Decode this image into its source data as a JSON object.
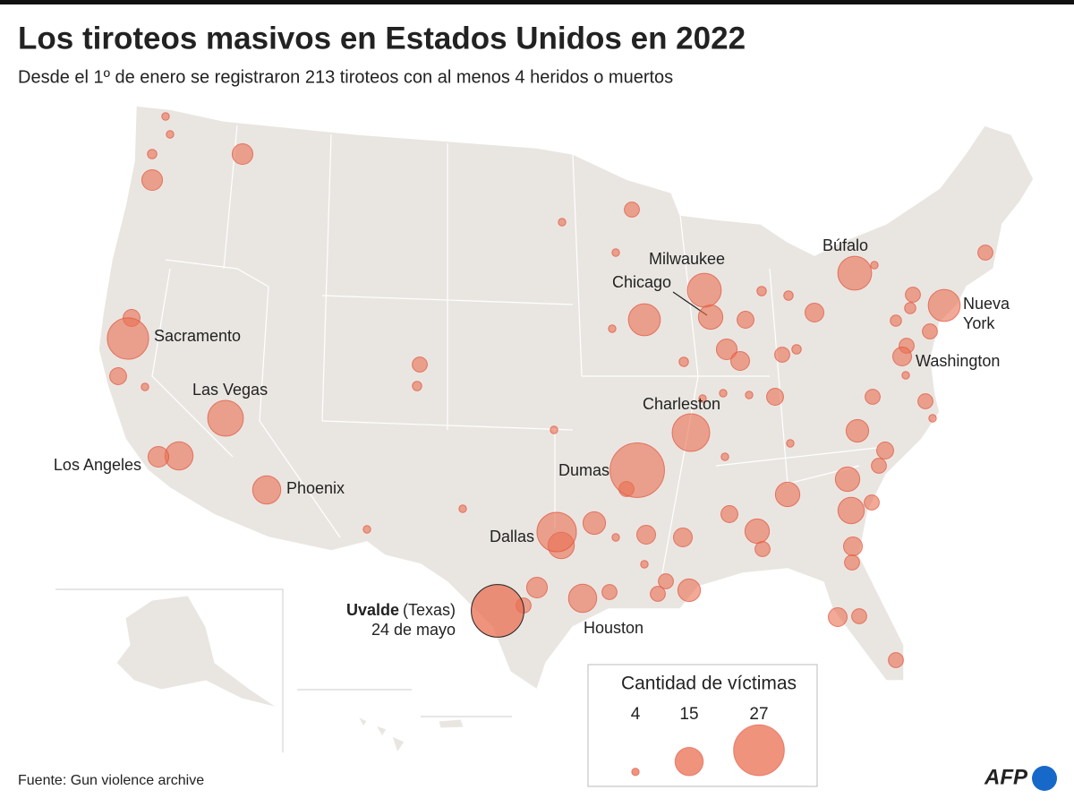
{
  "header": {
    "title": "Los tiroteos masivos en Estados Unidos en 2022",
    "subtitle": "Desde el 1º de enero se registraron 213 tiroteos con al menos 4 heridos o muertos"
  },
  "map": {
    "cities": [
      {
        "lines": [
          "Sacramento"
        ],
        "victims": 22
      },
      {
        "lines": [
          "Las Vegas"
        ],
        "victims": 19
      },
      {
        "lines": [
          "Los Angeles"
        ],
        "victims": 11
      },
      {
        "lines": [
          "Phoenix"
        ],
        "victims": 15
      },
      {
        "lines": [
          "Dallas"
        ],
        "victims": 21
      },
      {
        "lines": [
          "Houston"
        ],
        "victims": 15
      },
      {
        "lines": [
          "Dumas"
        ],
        "victims": 29
      },
      {
        "lines": [
          "Charleston"
        ],
        "victims": 20
      },
      {
        "lines": [
          "Chicago"
        ],
        "victims": 13
      },
      {
        "lines": [
          "Milwaukee"
        ],
        "victims": 18
      },
      {
        "lines": [
          "Búfalo"
        ],
        "victims": 18
      },
      {
        "lines": [
          "Nueva",
          "York"
        ],
        "victims": 17
      },
      {
        "lines": [
          "Washington"
        ],
        "victims": 10
      }
    ],
    "uvalde": {
      "name": "Uvalde",
      "state": "(Texas)",
      "date": "24 de mayo",
      "victims": 28
    },
    "other_incidents": [
      11,
      11,
      9,
      9,
      15,
      4,
      4,
      5,
      4,
      8,
      5,
      8,
      4,
      17,
      4,
      4,
      11,
      10,
      9,
      5,
      5,
      10,
      8,
      9,
      5,
      4,
      4,
      8,
      12,
      9,
      8,
      13,
      14,
      8,
      13,
      4,
      9,
      13,
      8,
      10,
      10,
      12,
      8,
      14,
      11,
      8,
      8,
      12,
      8,
      4,
      4,
      10,
      8,
      10,
      8,
      8,
      8,
      6,
      8,
      8,
      4,
      8,
      4,
      8,
      4,
      4,
      4,
      8,
      6,
      4,
      4,
      5,
      4
    ]
  },
  "legend": {
    "title": "Cantidad de víctimas",
    "values": [
      4,
      15,
      27
    ]
  },
  "source": "Fuente: Gun violence archive",
  "logo": "AFP"
}
